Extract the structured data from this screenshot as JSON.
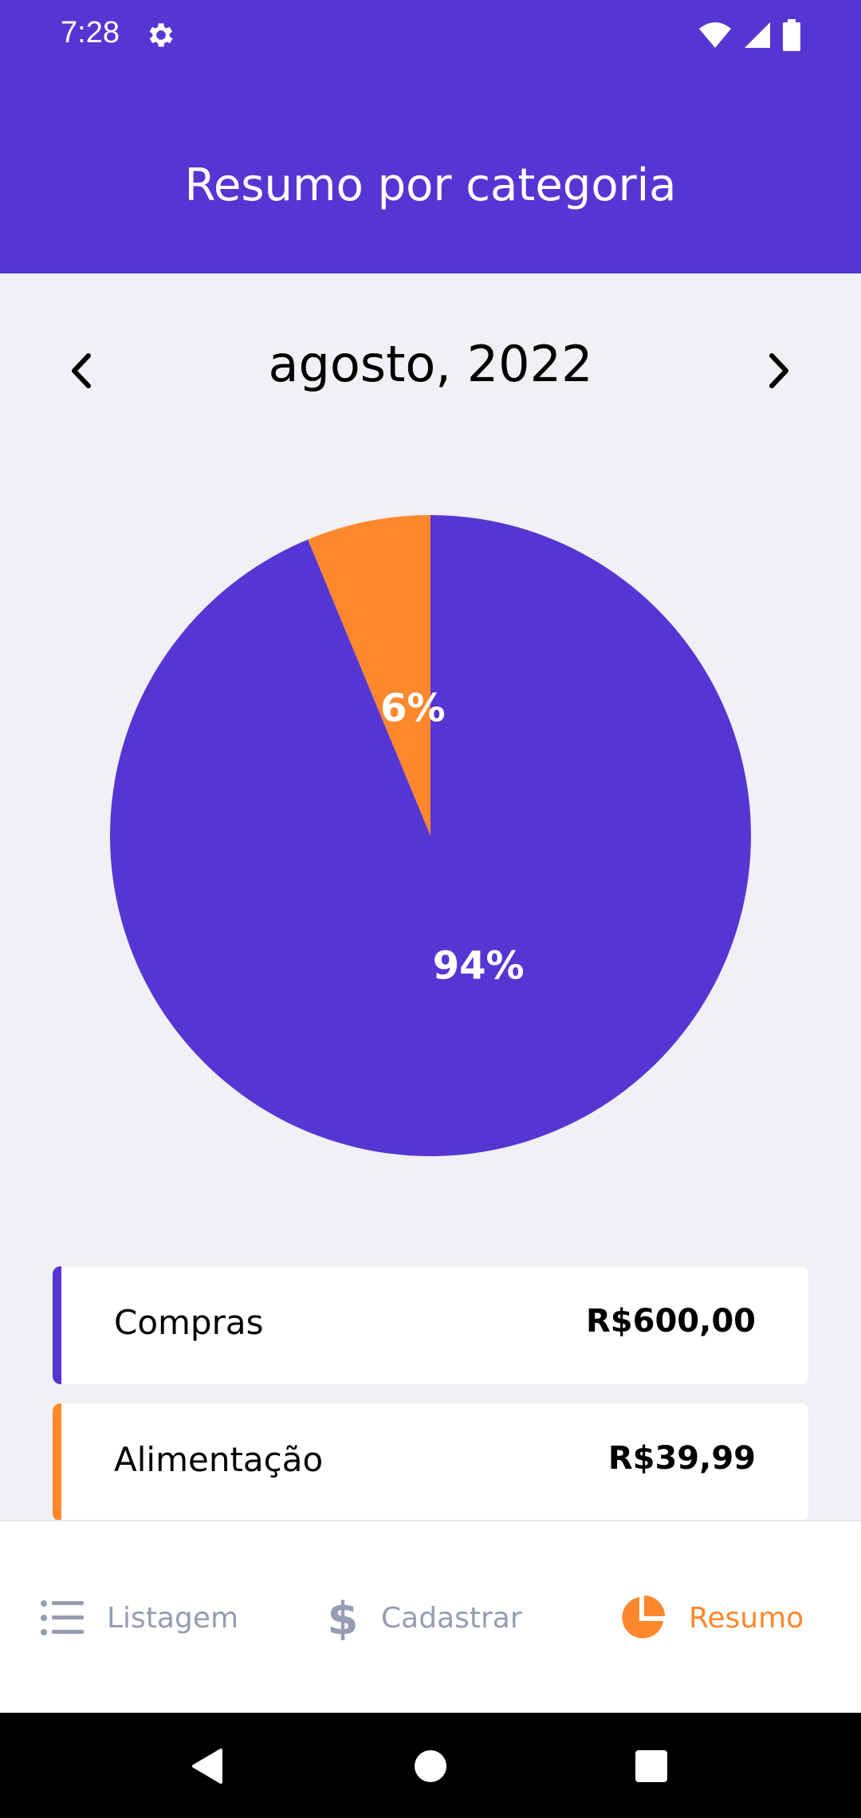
{
  "status_bar": {
    "time": "7:28"
  },
  "header": {
    "title": "Resumo por categoria"
  },
  "month_selector": {
    "label": "agosto, 2022"
  },
  "chart_data": {
    "type": "pie",
    "slices": [
      {
        "name": "Compras",
        "value": 600.0,
        "percent_label": "94%",
        "color": "#5636d3"
      },
      {
        "name": "Alimentação",
        "value": 39.99,
        "percent_label": "6%",
        "color": "#ff872c"
      }
    ]
  },
  "categories": [
    {
      "name": "Compras",
      "amount": "R$600,00",
      "color": "#5636d3"
    },
    {
      "name": "Alimentação",
      "amount": "R$39,99",
      "color": "#ff872c"
    }
  ],
  "tabs": [
    {
      "label": "Listagem",
      "icon": "list-icon",
      "active": false
    },
    {
      "label": "Cadastrar",
      "icon": "dollar-icon",
      "active": false
    },
    {
      "label": "Resumo",
      "icon": "pie-chart-icon",
      "active": true
    }
  ],
  "colors": {
    "primary": "#5636d3",
    "secondary": "#ff872c",
    "background": "#f0f0f5",
    "muted_text": "#969cb2"
  }
}
